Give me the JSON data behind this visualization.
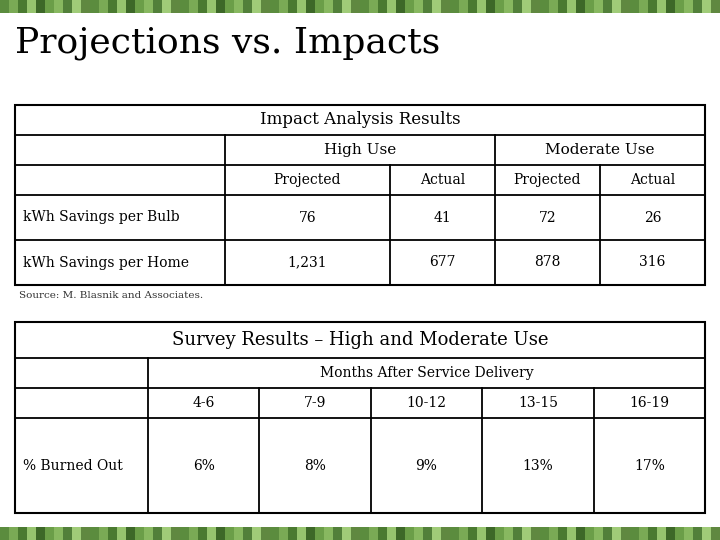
{
  "title": "Projections vs. Impacts",
  "title_fontsize": 26,
  "title_color": "#000000",
  "background_color": "#ffffff",
  "table1_title": "Impact Analysis Results",
  "table1_rows": [
    [
      "kWh Savings per Bulb",
      "76",
      "41",
      "72",
      "26"
    ],
    [
      "kWh Savings per Home",
      "1,231",
      "677",
      "878",
      "316"
    ]
  ],
  "source_text": "Source: M. Blasnik and Associates.",
  "table2_title": "Survey Results – High and Moderate Use",
  "table2_periods": [
    "4-6",
    "7-9",
    "10-12",
    "13-15",
    "16-19"
  ],
  "table2_row": [
    "% Burned Out",
    "6%",
    "8%",
    "9%",
    "13%",
    "17%"
  ],
  "border_colors": [
    "#5a8a3c",
    "#8ab85a",
    "#3a6a2c",
    "#aad06a",
    "#2a5a1c",
    "#c8e88a"
  ],
  "font_family": "serif"
}
